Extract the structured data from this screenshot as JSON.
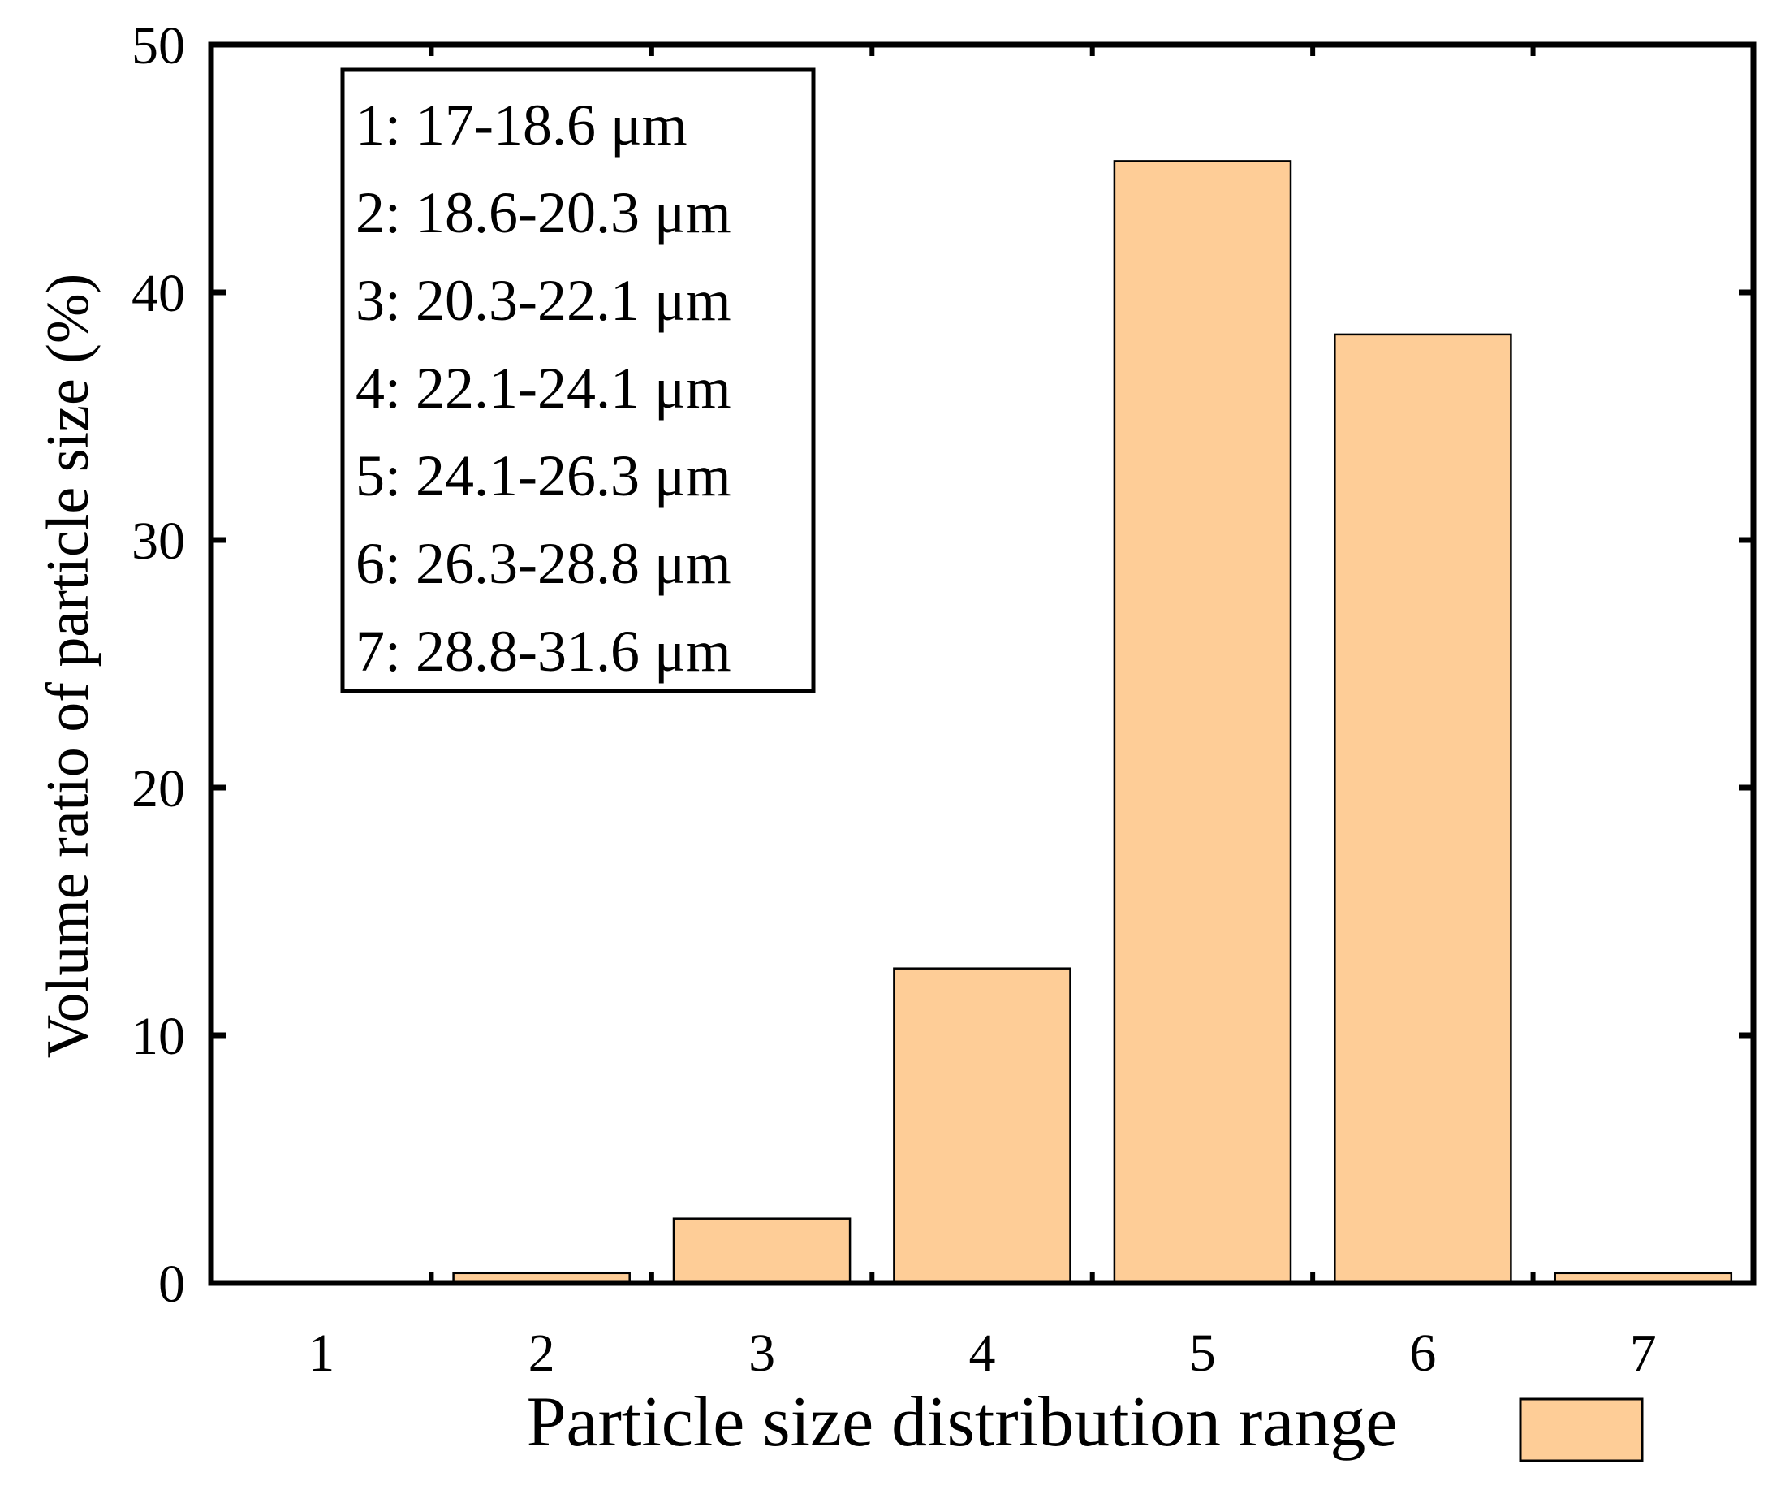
{
  "chart_data": {
    "type": "bar",
    "categories": [
      "1",
      "2",
      "3",
      "4",
      "5",
      "6",
      "7"
    ],
    "values": [
      0,
      0.4,
      2.6,
      12.7,
      45.3,
      38.3,
      0.4
    ],
    "xlabel": "Particle size distribution range",
    "ylabel": "Volume ratio of particle size (%)",
    "ylim": [
      0,
      50
    ],
    "yticks": [
      0,
      10,
      20,
      30,
      40,
      50
    ],
    "grid": false,
    "legend_position": "bottom-right",
    "bar_color": "#FECD97",
    "range_box": [
      "1: 17-18.6 μm",
      "2: 18.6-20.3 μm",
      "3: 20.3-22.1 μm",
      "4: 22.1-24.1 μm",
      "5: 24.1-26.3 μm",
      "6: 26.3-28.8 μm",
      "7: 28.8-31.6 μm"
    ]
  }
}
